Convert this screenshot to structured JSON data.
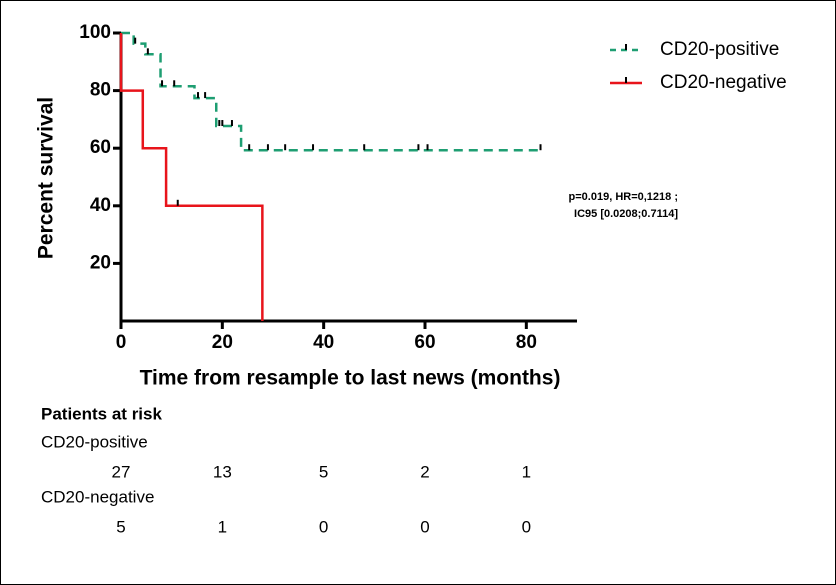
{
  "chart_data": {
    "type": "kaplan-meier",
    "xlabel": "Time from resample to last news (months)",
    "ylabel": "Percent survival",
    "xlim": [
      0,
      90
    ],
    "ylim": [
      0,
      100
    ],
    "xticks": [
      0,
      20,
      40,
      60,
      80
    ],
    "yticks": [
      20,
      40,
      60,
      80,
      100
    ],
    "annotation": [
      "p=0.019, HR=0,1218 ;",
      "IC95 [0.0208;0.7114]"
    ],
    "series": [
      {
        "name": "CD20-positive",
        "color": "#1e9e72",
        "dashed": true,
        "x": [
          0,
          2.5,
          4.8,
          7.8,
          14.5,
          18.8,
          23.7
        ],
        "values": [
          100,
          96.3,
          92.6,
          81.5,
          77.4,
          67.7,
          59.3
        ],
        "censored": [
          2.8,
          5.3,
          8.1,
          10.5,
          15.2,
          16.6,
          19.4,
          20,
          21.9,
          25.3,
          29,
          32.4,
          37.9,
          48,
          58.7,
          60.5,
          82.8
        ]
      },
      {
        "name": "CD20-negative",
        "color": "#e8141b",
        "dashed": false,
        "x": [
          0,
          0,
          4.3,
          8.9,
          27.9
        ],
        "values": [
          100,
          80,
          60,
          40,
          0
        ],
        "censored": [
          11.2
        ]
      }
    ]
  },
  "risk_table": {
    "title": "Patients at risk",
    "rows": [
      {
        "name": "CD20-positive",
        "values": [
          27,
          13,
          5,
          2,
          1
        ]
      },
      {
        "name": "CD20-negative",
        "values": [
          5,
          1,
          0,
          0,
          0
        ]
      }
    ]
  }
}
